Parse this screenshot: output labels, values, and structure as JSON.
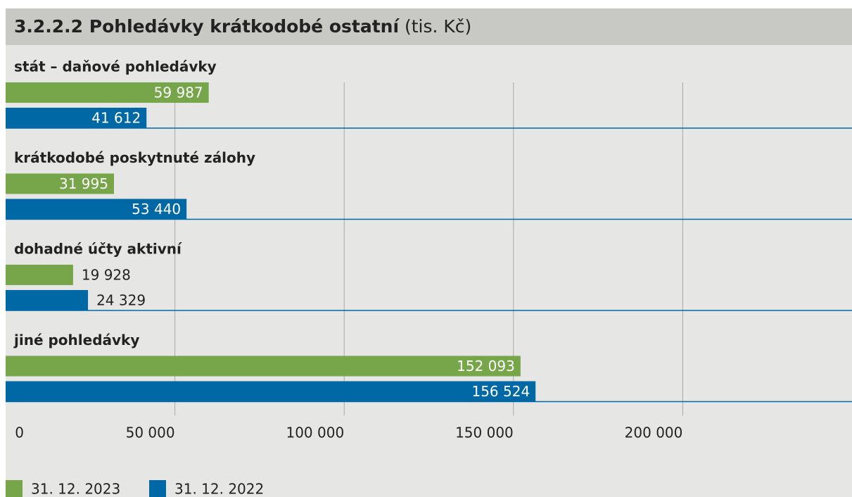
{
  "chart_data": {
    "type": "bar",
    "orientation": "horizontal",
    "title": "3.2.2.2  Pohledávky krátkodobé ostatní",
    "unit": "(tis. Kč)",
    "categories": [
      "stát – daňové pohledávky",
      "krátkodobé poskytnuté zálohy",
      "dohadné účty aktivní",
      "jiné pohledávky"
    ],
    "series": [
      {
        "name": "31. 12. 2023",
        "color": "#76a54a",
        "values": [
          59987,
          31995,
          19928,
          152093
        ],
        "value_labels": [
          "59 987",
          "31 995",
          "19 928",
          "152 093"
        ]
      },
      {
        "name": "31. 12. 2022",
        "color": "#0068a5",
        "values": [
          41612,
          53440,
          24329,
          156524
        ],
        "value_labels": [
          "41 612",
          "53 440",
          "24 329",
          "156 524"
        ]
      }
    ],
    "xlim": [
      0,
      250000
    ],
    "xticks": [
      0,
      {
        "value": 50000,
        "label": "50 000"
      },
      {
        "value": 100000,
        "label": "100 000"
      },
      {
        "value": 150000,
        "label": "150 000"
      },
      {
        "value": 200000,
        "label": "200 000"
      }
    ],
    "grid": true,
    "legend": "bottom-left"
  }
}
